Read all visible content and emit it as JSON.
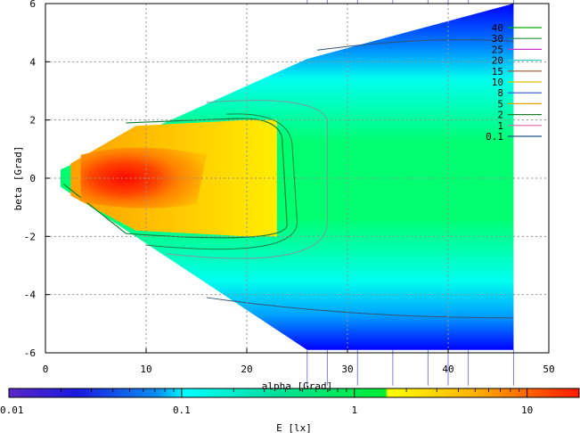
{
  "chart_data": {
    "type": "heatmap",
    "title": "",
    "xlabel": "alpha [Grad]",
    "ylabel": "beta [Grad]",
    "xlim": [
      0,
      50
    ],
    "ylim": [
      6,
      -6
    ],
    "x_ticks": [
      "0",
      "10",
      "20",
      "30",
      "40",
      "50"
    ],
    "y_ticks": [
      "-6",
      "-4",
      "-2",
      "0",
      "2",
      "4",
      "6"
    ],
    "grid": true,
    "legend_position": "top-right",
    "contour_levels": [
      {
        "label": "40",
        "color": "#00b000"
      },
      {
        "label": "30",
        "color": "#1e8f3a"
      },
      {
        "label": "25",
        "color": "#cc33cc"
      },
      {
        "label": "20",
        "color": "#33cccc"
      },
      {
        "label": "15",
        "color": "#a0522d"
      },
      {
        "label": "10",
        "color": "#e0c000"
      },
      {
        "label": "8",
        "color": "#3355dd"
      },
      {
        "label": "5",
        "color": "#e8a000"
      },
      {
        "label": "2",
        "color": "#208030"
      },
      {
        "label": "1",
        "color": "#dd66aa"
      },
      {
        "label": "0.1",
        "color": "#225588"
      }
    ],
    "colorbar": {
      "label": "E [lx]",
      "scale": "log",
      "range": [
        0.01,
        20
      ],
      "ticks": [
        "0.01",
        "0.1",
        "1",
        "10"
      ]
    },
    "peak": {
      "alpha": 6,
      "beta": 0
    },
    "fan_edges": [
      {
        "alpha": 1.5,
        "beta_top": -0.3,
        "beta_bottom": 0.3
      },
      {
        "alpha": 26,
        "beta_top": -5.9,
        "beta_bottom": 4.1
      },
      {
        "alpha": 46.5,
        "beta_top": -5.9,
        "beta_bottom": 6
      }
    ]
  }
}
